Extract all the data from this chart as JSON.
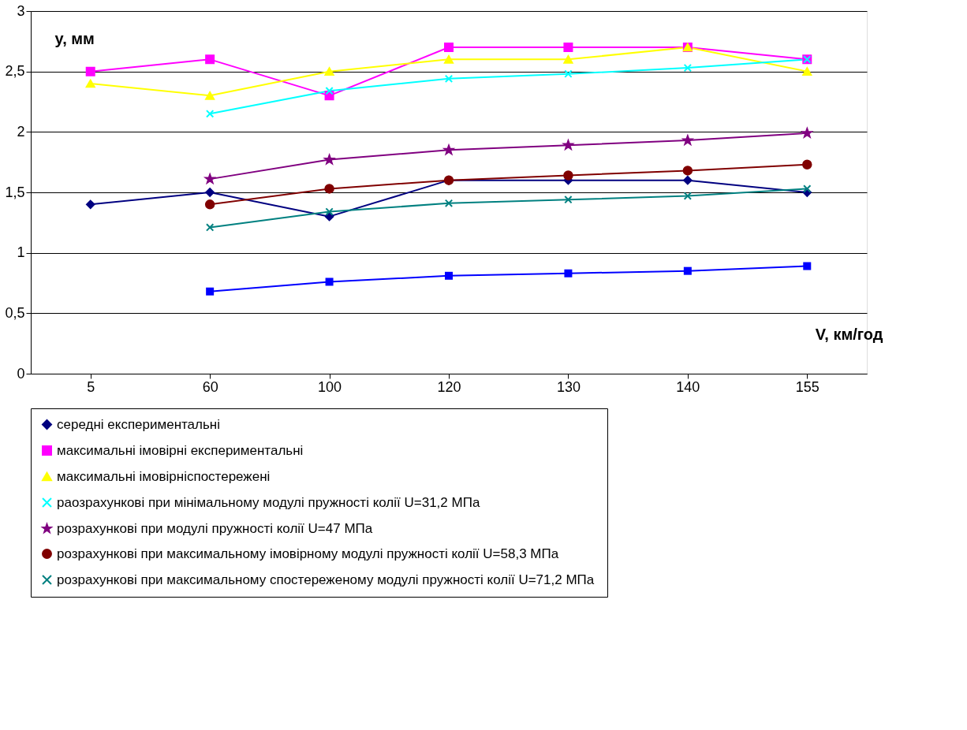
{
  "chart_data": {
    "type": "line",
    "xlabel": "V, км/год",
    "ylabel": "y, мм",
    "categories": [
      "5",
      "60",
      "100",
      "120",
      "130",
      "140",
      "155"
    ],
    "ylim": [
      0,
      3
    ],
    "yticks": [
      0,
      {
        "value": 0.5,
        "label": "0,5"
      },
      1,
      {
        "value": 1.5,
        "label": "1,5"
      },
      2,
      {
        "value": 2.5,
        "label": "2,5"
      },
      3
    ],
    "grid": "y",
    "legend": "bottom",
    "line_style": "solid",
    "series": [
      {
        "name": "середні експериментальні",
        "color": "#000080",
        "marker": "diamond",
        "values": [
          1.4,
          1.5,
          1.3,
          1.6,
          1.6,
          1.6,
          1.5
        ]
      },
      {
        "name": "максимальні імовірні експериментальні",
        "color": "#ff00ff",
        "marker": "square",
        "values": [
          2.5,
          2.6,
          2.3,
          2.7,
          2.7,
          2.7,
          2.6
        ]
      },
      {
        "name": "максимальні імовірніспостережені",
        "color": "#ffff00",
        "marker": "triangle",
        "values": [
          2.4,
          2.3,
          2.5,
          2.6,
          2.6,
          2.7,
          2.5
        ]
      },
      {
        "name": "раозрахункові при мінімальному модулі пружності колії U=31,2 МПа",
        "color": "#00ffff",
        "marker": "cross",
        "values": [
          null,
          2.15,
          2.34,
          2.44,
          2.48,
          2.53,
          2.6
        ]
      },
      {
        "name": "розрахункові при модулі пружності колії  U=47 МПа",
        "color": "#800080",
        "marker": "star",
        "values": [
          null,
          1.61,
          1.77,
          1.85,
          1.89,
          1.93,
          1.99
        ]
      },
      {
        "name": "розрахункові при максимальному імовірному  модулі пружності колії  U=58,3 МПа",
        "color": "#800000",
        "marker": "circle",
        "values": [
          null,
          1.4,
          1.53,
          1.6,
          1.64,
          1.68,
          1.73
        ]
      },
      {
        "name": "розрахункові при максимальному спостереженому модулі пружності колії  U=71,2 МПа",
        "color": "#008080",
        "marker": "cross",
        "values": [
          null,
          1.21,
          1.34,
          1.41,
          1.44,
          1.47,
          1.53
        ]
      },
      {
        "color": "#0000ff",
        "marker": "square",
        "values": [
          null,
          0.68,
          0.76,
          0.81,
          0.83,
          0.85,
          0.89
        ]
      }
    ]
  }
}
